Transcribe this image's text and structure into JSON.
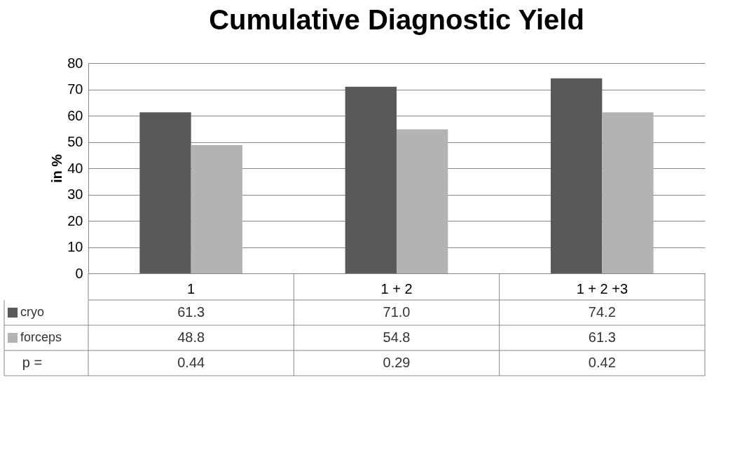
{
  "chart_data": {
    "type": "bar",
    "title": "Cumulative Diagnostic Yield",
    "ylabel": "in %",
    "categories": [
      "1",
      "1 + 2",
      "1 + 2 +3"
    ],
    "series": [
      {
        "name": "cryo",
        "color": "#595959",
        "values": [
          61.3,
          71.0,
          74.2
        ],
        "value_labels": [
          "61.3",
          "71.0",
          "74.2"
        ]
      },
      {
        "name": "forceps",
        "color": "#b3b3b3",
        "values": [
          48.8,
          54.8,
          61.3
        ],
        "value_labels": [
          "48.8",
          "54.8",
          "61.3"
        ]
      }
    ],
    "ylim": [
      0,
      80
    ],
    "yticks": [
      0,
      10,
      20,
      30,
      40,
      50,
      60,
      70,
      80
    ],
    "grid": "y",
    "legend": "bottom left",
    "annotations": [
      "p =",
      "0.44",
      "0.29",
      "0.42"
    ]
  }
}
